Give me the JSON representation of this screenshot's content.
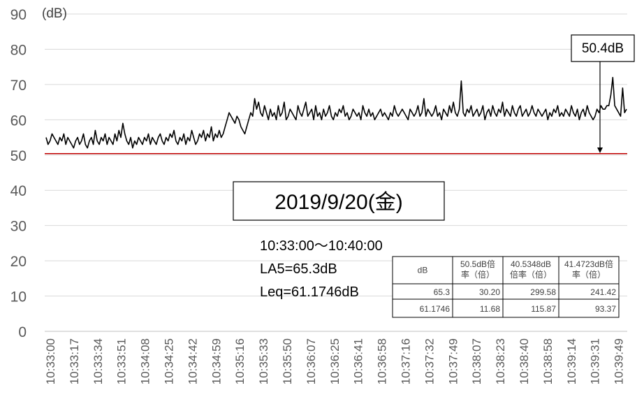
{
  "chart_data": {
    "type": "line",
    "y_unit_label": "(dB)",
    "ylim": [
      0,
      90
    ],
    "yticks": [
      "0",
      "10",
      "20",
      "30",
      "40",
      "50",
      "60",
      "70",
      "80",
      "90"
    ],
    "grid": "horizontal",
    "x_tick_labels": [
      "10:33:00",
      "10:33:17",
      "10:33:34",
      "10:33:51",
      "10:34:08",
      "10:34:25",
      "10:34:42",
      "10:34:59",
      "10:35:16",
      "10:35:33",
      "10:35:50",
      "10:36:07",
      "10:36:25",
      "10:36:41",
      "10:36:58",
      "10:37:16",
      "10:37:32",
      "10:37:49",
      "10:38:07",
      "10:38:23",
      "10:38:40",
      "10:38:58",
      "10:39:14",
      "10:39:31",
      "10:39:49"
    ],
    "x_start": "10:33:00",
    "x_end": "10:40:00",
    "series": [
      {
        "color": "#000000",
        "values": [
          55,
          53,
          54,
          56,
          55,
          54,
          53,
          55,
          54,
          56,
          53,
          55,
          54,
          53,
          52,
          54,
          55,
          53,
          54,
          56,
          53,
          52,
          54,
          55,
          53,
          57,
          54,
          53,
          55,
          54,
          56,
          53,
          55,
          54,
          53,
          56,
          54,
          57,
          55,
          59,
          56,
          54,
          53,
          55,
          52,
          54,
          53,
          55,
          54,
          53,
          55,
          54,
          56,
          53,
          55,
          54,
          53,
          55,
          56,
          54,
          53,
          55,
          54,
          56,
          55,
          57,
          54,
          53,
          55,
          54,
          56,
          53,
          55,
          54,
          57,
          55,
          53,
          54,
          56,
          55,
          57,
          54,
          56,
          55,
          58,
          54,
          56,
          55,
          57,
          55,
          56,
          58,
          60,
          62,
          61,
          60,
          59,
          61,
          60,
          58,
          57,
          56,
          58,
          60,
          62,
          61,
          66,
          63,
          65,
          62,
          61,
          64,
          62,
          60,
          63,
          61,
          62,
          60,
          64,
          61,
          62,
          65,
          60,
          61,
          63,
          62,
          61,
          60,
          64,
          62,
          61,
          63,
          65,
          61,
          62,
          63,
          60,
          64,
          61,
          62,
          60,
          63,
          61,
          62,
          64,
          61,
          60,
          62,
          61,
          63,
          62,
          64,
          61,
          62,
          60,
          61,
          63,
          62,
          61,
          62,
          60,
          64,
          62,
          61,
          63,
          61,
          62,
          60,
          61,
          62,
          63,
          61,
          62,
          61,
          60,
          62,
          61,
          64,
          62,
          61,
          62,
          63,
          62,
          61,
          60,
          63,
          62,
          61,
          62,
          64,
          61,
          62,
          66,
          61,
          63,
          62,
          61,
          62,
          64,
          61,
          62,
          60,
          63,
          62,
          61,
          64,
          62,
          65,
          62,
          61,
          63,
          71,
          62,
          61,
          63,
          62,
          64,
          61,
          62,
          63,
          61,
          62,
          64,
          60,
          62,
          63,
          61,
          64,
          62,
          61,
          63,
          62,
          65,
          61,
          63,
          62,
          61,
          64,
          62,
          61,
          63,
          64,
          61,
          62,
          63,
          61,
          62,
          64,
          62,
          61,
          63,
          62,
          61,
          62,
          63,
          60,
          62,
          61,
          63,
          62,
          64,
          61,
          62,
          61,
          63,
          62,
          61,
          64,
          62,
          61,
          63,
          60,
          62,
          63,
          61,
          64,
          62,
          61,
          60,
          61,
          63,
          62,
          64,
          63,
          63,
          64,
          64,
          67,
          72,
          64,
          63,
          62,
          61,
          69,
          62,
          63
        ]
      }
    ],
    "reference_line": {
      "value": 50.4,
      "color": "#c00000"
    },
    "callout": {
      "label": "50.4dB"
    },
    "date_box": "2019/9/20(金)",
    "info_lines": [
      "10:33:00〜10:40:00",
      "LA5=65.3dB",
      "Leq=61.1746dB"
    ],
    "table": {
      "headers": [
        "dB",
        "50.5dB倍率（倍）",
        "40.5348dB倍率（倍）",
        "41.4723dB倍率（倍）"
      ],
      "header_lines": [
        [
          "dB"
        ],
        [
          "50.5dB倍",
          "率（倍）"
        ],
        [
          "40.5348dB",
          "倍率（倍）"
        ],
        [
          "41.4723dB倍",
          "率（倍）"
        ]
      ],
      "rows": [
        [
          "65.3",
          "30.20",
          "299.58",
          "241.42"
        ],
        [
          "61.1746",
          "11.68",
          "115.87",
          "93.37"
        ]
      ]
    }
  }
}
